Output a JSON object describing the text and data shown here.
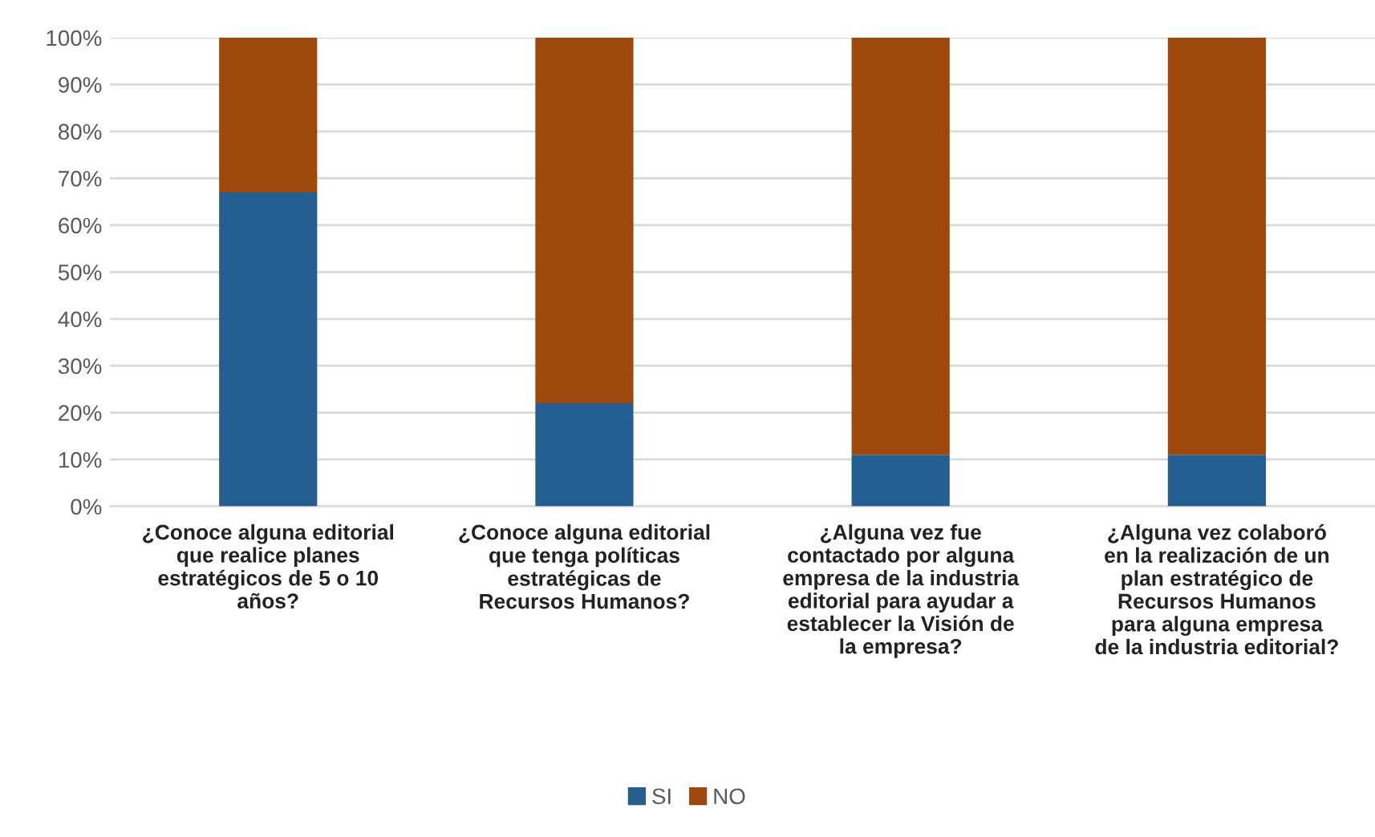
{
  "chart_data": {
    "type": "bar",
    "stacked": true,
    "categories": [
      "¿Conoce alguna editorial\nque realice planes\nestratégicos de 5 o 10\naños?",
      "¿Conoce alguna editorial\nque tenga políticas\nestratégicas de\nRecursos Humanos?",
      "¿Alguna vez fue\ncontactado por alguna\nempresa de la industria\neditorial para ayudar a\nestablecer la Visión de\nla empresa?",
      "¿Alguna vez colaboró\nen la realización de un\nplan estratégico de\nRecursos Humanos\npara alguna empresa\nde la industria editorial?"
    ],
    "series": [
      {
        "name": "SI",
        "color": "#255e91",
        "values": [
          67,
          22,
          11,
          11
        ]
      },
      {
        "name": "NO",
        "color": "#9e480e",
        "values": [
          33,
          78,
          89,
          89
        ]
      }
    ],
    "ylim": [
      0,
      100
    ],
    "yticks": [
      {
        "value": 0,
        "label": "0%"
      },
      {
        "value": 10,
        "label": "10%"
      },
      {
        "value": 20,
        "label": "20%"
      },
      {
        "value": 30,
        "label": "30%"
      },
      {
        "value": 40,
        "label": "40%"
      },
      {
        "value": 50,
        "label": "50%"
      },
      {
        "value": 60,
        "label": "60%"
      },
      {
        "value": 70,
        "label": "70%"
      },
      {
        "value": 80,
        "label": "80%"
      },
      {
        "value": 90,
        "label": "90%"
      },
      {
        "value": 100,
        "label": "100%"
      }
    ],
    "grid": "y",
    "legend": "bottom"
  }
}
